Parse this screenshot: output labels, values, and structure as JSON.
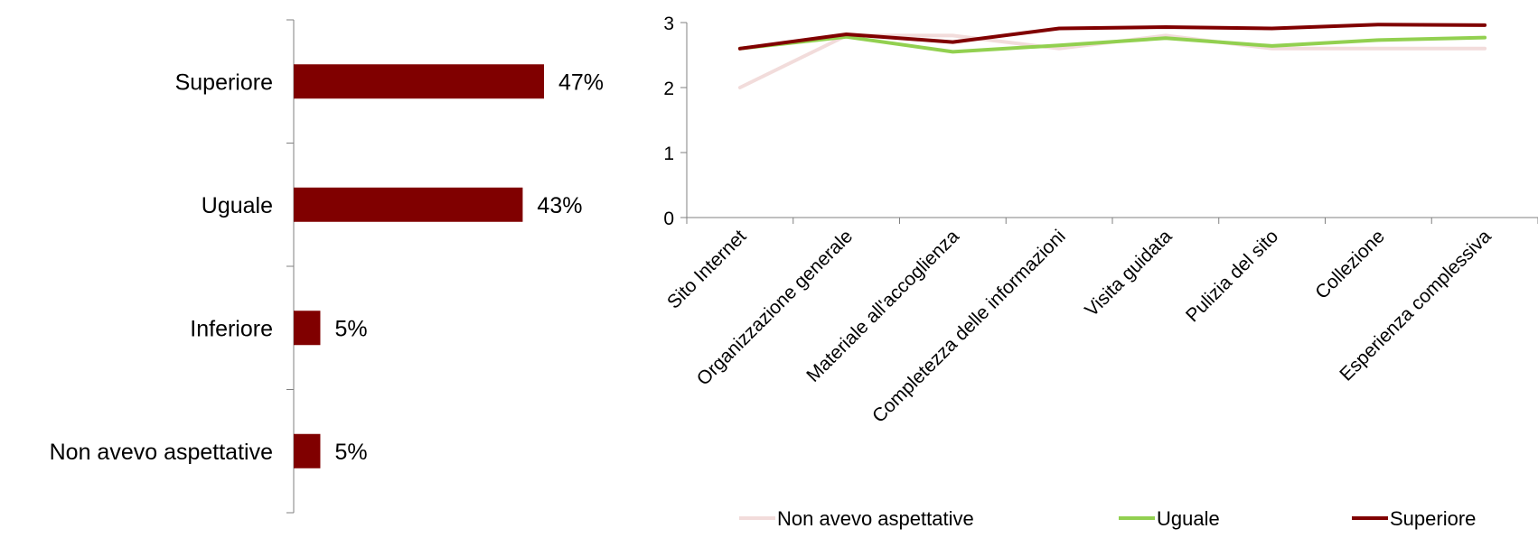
{
  "chart_data": [
    {
      "type": "bar",
      "orientation": "horizontal",
      "categories": [
        "Superiore",
        "Uguale",
        "Inferiore",
        "Non avevo aspettative"
      ],
      "values": [
        47,
        43,
        5,
        5
      ],
      "value_labels": [
        "47%",
        "43%",
        "5%",
        "5%"
      ],
      "unit": "%",
      "title": "",
      "xlabel": "",
      "ylabel": "",
      "xlim": [
        0,
        100
      ],
      "grid": false,
      "color": "#800000"
    },
    {
      "type": "line",
      "categories": [
        "Sito Internet",
        "Organizzazione generale",
        "Materiale all'accoglienza",
        "Completezza delle informazioni",
        "Visita guidata",
        "Pulizia del sito",
        "Collezione",
        "Esperienza complessiva"
      ],
      "series": [
        {
          "name": "Non avevo aspettative",
          "values": [
            2.0,
            2.8,
            2.8,
            2.6,
            2.8,
            2.6,
            2.6,
            2.6
          ],
          "color": "#f2dcdb"
        },
        {
          "name": "Uguale",
          "values": [
            2.6,
            2.78,
            2.55,
            2.65,
            2.76,
            2.64,
            2.73,
            2.77
          ],
          "color": "#92d050"
        },
        {
          "name": "Superiore",
          "values": [
            2.6,
            2.82,
            2.7,
            2.91,
            2.93,
            2.91,
            2.97,
            2.96
          ],
          "color": "#800000"
        }
      ],
      "yticks": [
        0,
        1,
        2,
        3
      ],
      "ylim": [
        0,
        3
      ],
      "title": "",
      "xlabel": "",
      "ylabel": "",
      "grid": false,
      "legend": "bottom"
    }
  ]
}
